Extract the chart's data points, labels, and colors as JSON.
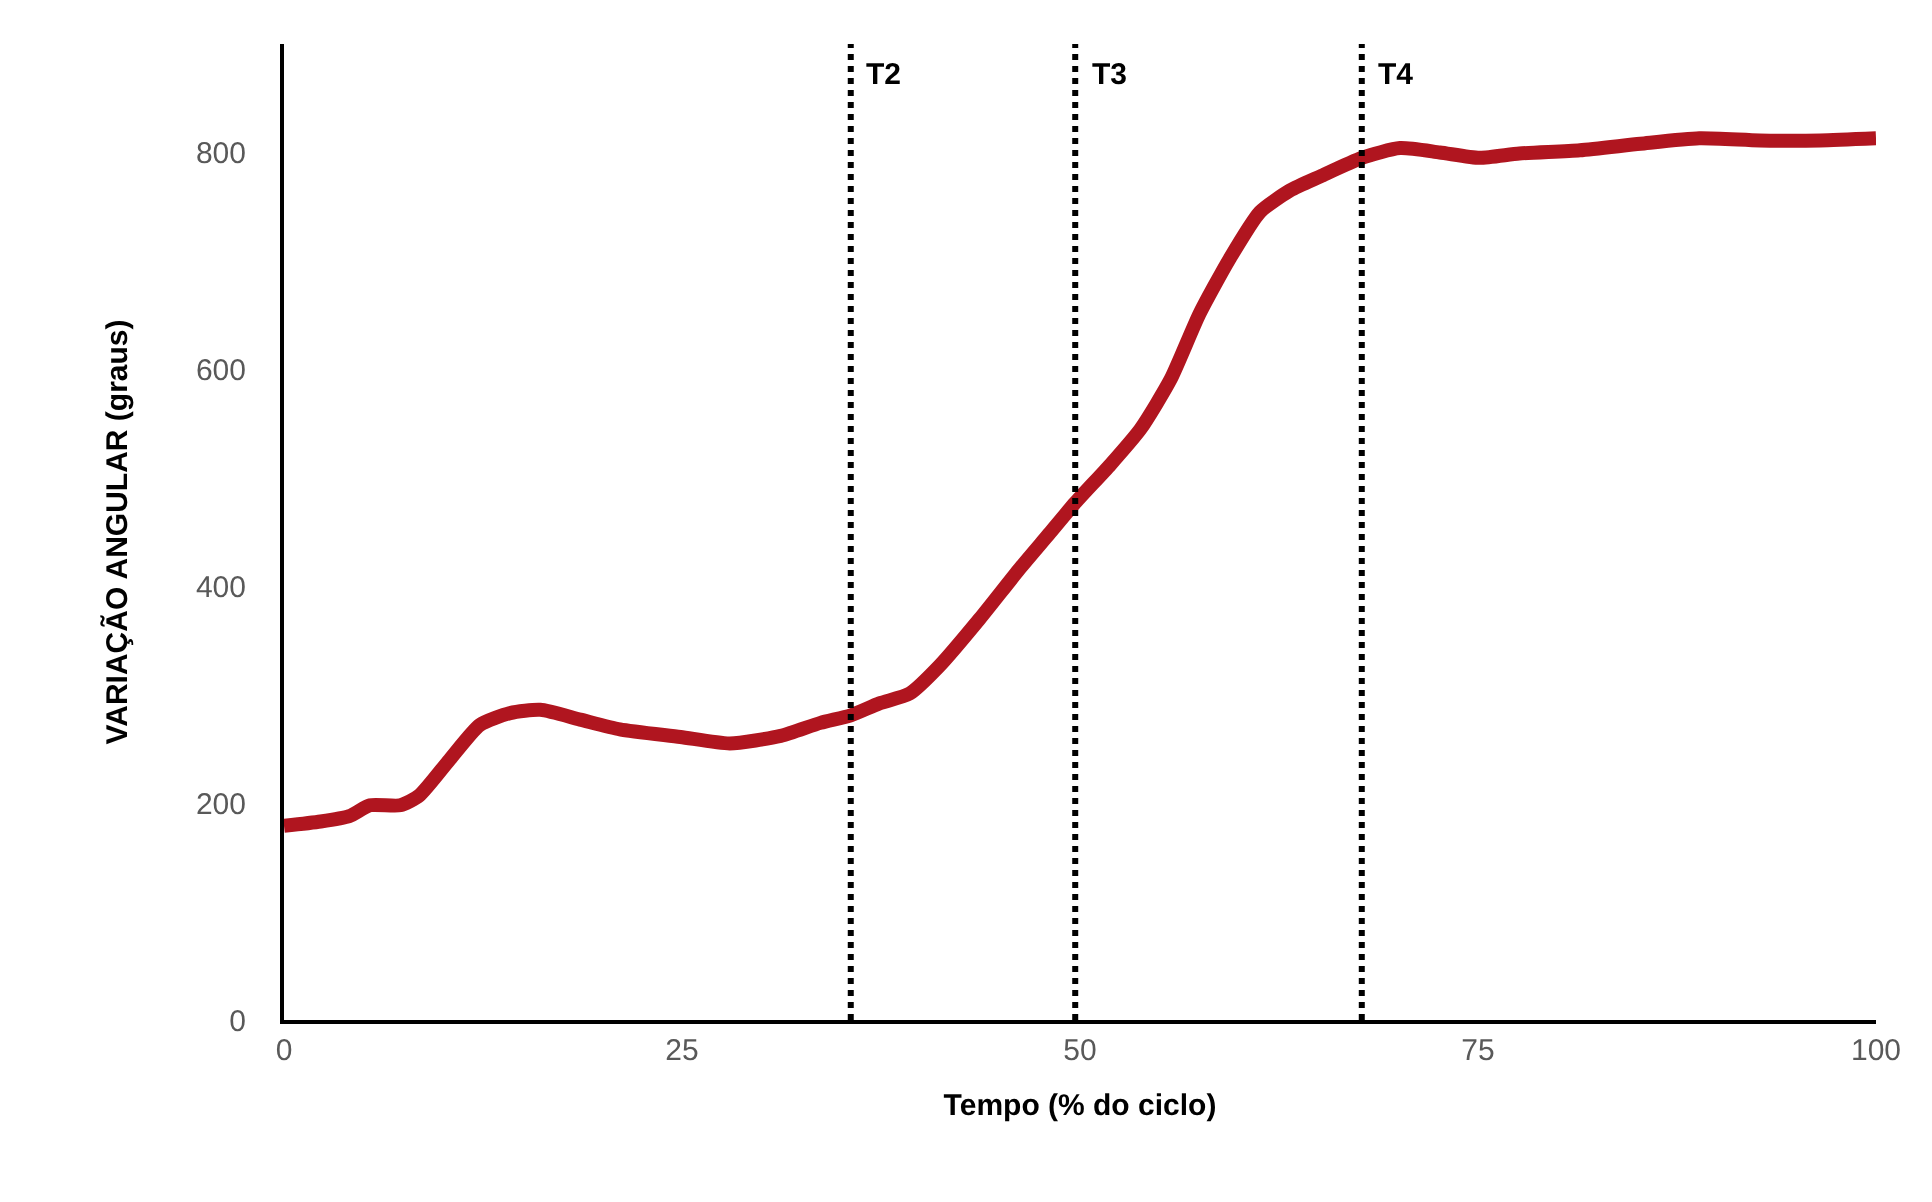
{
  "chart_data": {
    "type": "line",
    "xlabel": "Tempo (% do ciclo)",
    "ylabel": "VARIAÇÃO ANGULAR (graus)",
    "series": [
      {
        "color": "#b0151f",
        "x": [
          0,
          2.3,
          4.1,
          5.4,
          7.3,
          8.5,
          10.4,
          12.3,
          14.2,
          16.1,
          18.6,
          21.1,
          24.9,
          28,
          31.2,
          33.7,
          35.6,
          37.4,
          39.3,
          41.2,
          43.7,
          46.2,
          48.1,
          49.7,
          51.9,
          53.8,
          55.7,
          57.5,
          59.4,
          61.3,
          63.2,
          65.1,
          67.7,
          70.1,
          72.6,
          75.1,
          77.6,
          81.4,
          85.2,
          88.9,
          92.7,
          96.5,
          100
        ],
        "values": [
          179,
          183,
          188,
          198,
          198,
          207,
          240,
          272,
          283,
          286,
          277,
          268,
          261,
          255,
          262,
          274,
          281,
          292,
          301,
          327,
          370,
          416,
          449,
          477,
          512,
          545,
          591,
          651,
          702,
          745,
          765,
          778,
          795,
          804,
          800,
          795,
          799,
          802,
          808,
          813,
          811,
          811,
          813
        ]
      }
    ],
    "xlim": [
      0,
      100
    ],
    "xticks": [
      0,
      25,
      50,
      75,
      100
    ],
    "ylim": [
      0,
      900
    ],
    "yticks": [
      0,
      200,
      400,
      600,
      800
    ],
    "grid": false,
    "marker": "none",
    "line_style": "solid",
    "ref_lines": [
      {
        "axis": "x",
        "value": 35.6,
        "label": "T2",
        "color": "#000000",
        "line_style": "dotted"
      },
      {
        "axis": "x",
        "value": 49.7,
        "label": "T3",
        "color": "#000000",
        "line_style": "dotted"
      },
      {
        "axis": "x",
        "value": 67.7,
        "label": "T4",
        "color": "#000000",
        "line_style": "dotted"
      }
    ]
  }
}
